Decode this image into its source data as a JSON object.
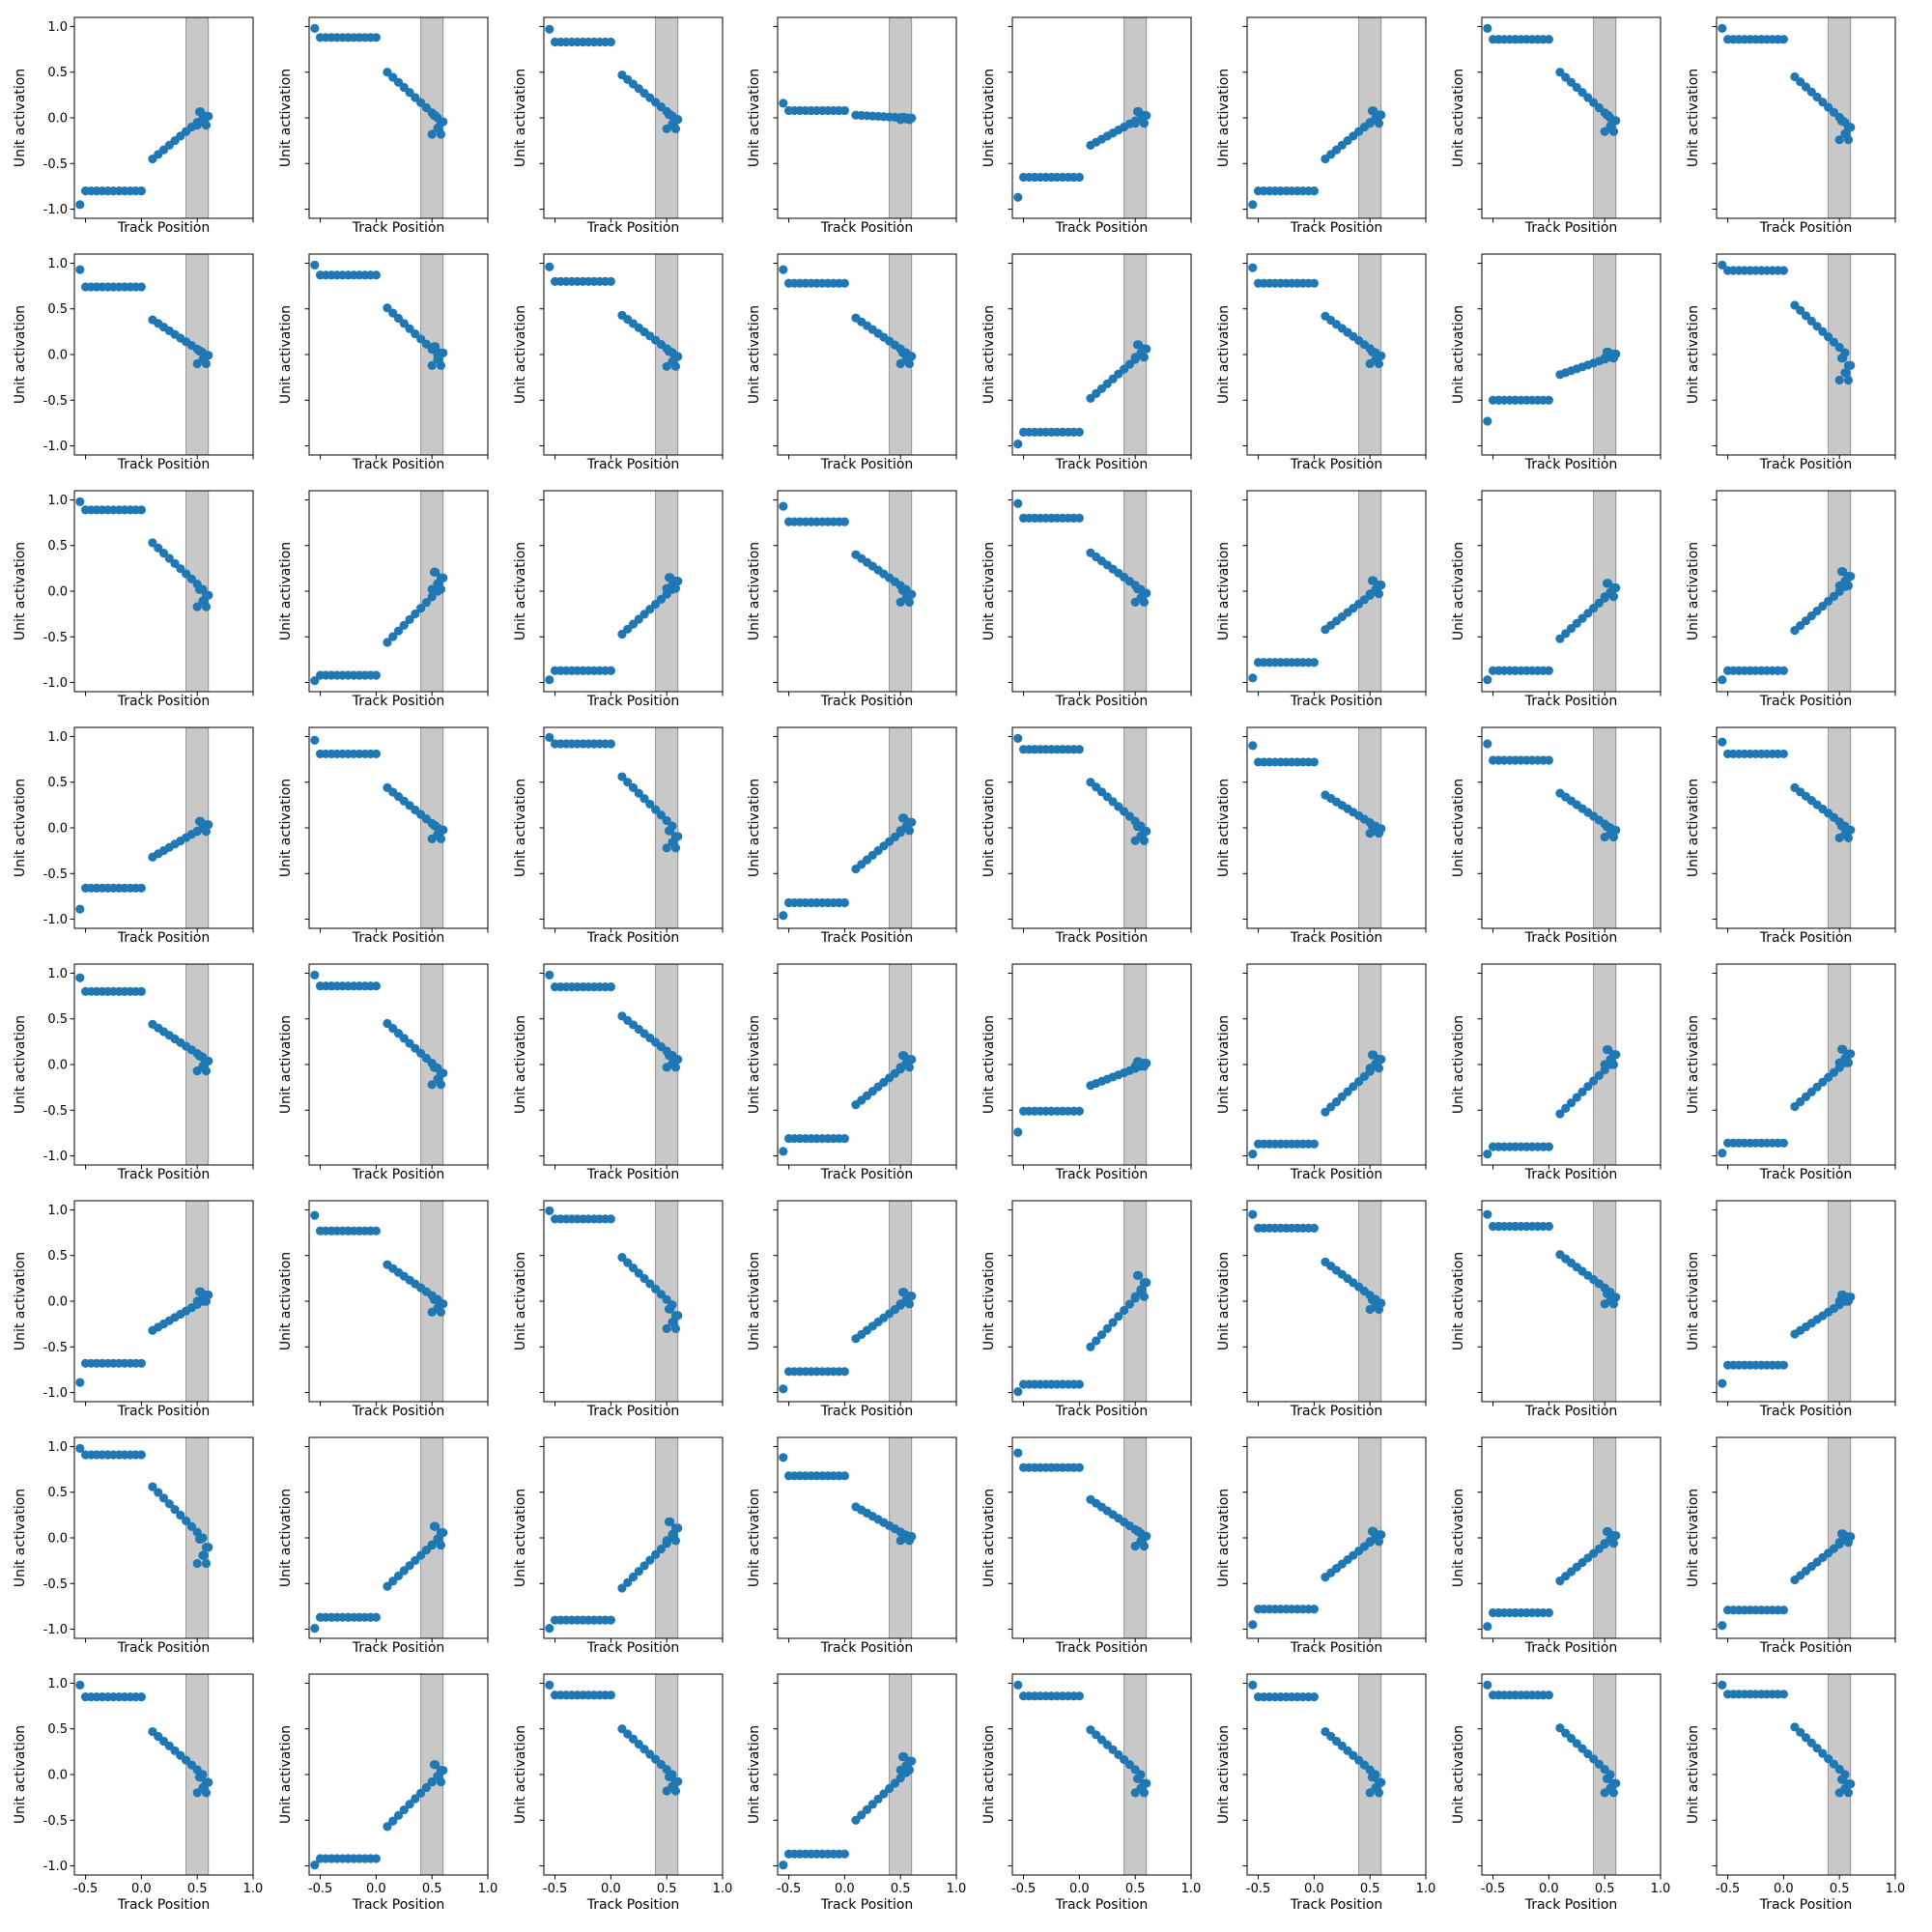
{
  "figure": {
    "point_color": "#1f77b4",
    "shade_color": "#c8c8c8",
    "shade_edge_color": "#808080"
  },
  "chart_data": {
    "type": "scatter",
    "grid_rows": 8,
    "grid_cols": 8,
    "xlabel": "Track Position",
    "ylabel": "Unit activation",
    "xlim": [
      -0.6,
      1.0
    ],
    "ylim": [
      -1.1,
      1.1
    ],
    "xticks": [
      -0.5,
      0.0,
      0.5,
      1.0
    ],
    "xtick_labels": [
      "-0.5",
      "0.0",
      "0.5",
      "1.0"
    ],
    "yticks": [
      -1.0,
      -0.5,
      0.0,
      0.5,
      1.0
    ],
    "ytick_labels": [
      "-1.0",
      "-0.5",
      "0.0",
      "0.5",
      "1.0"
    ],
    "grid": false,
    "shaded_region": [
      0.4,
      0.6
    ],
    "flat_x": [
      -0.5,
      -0.45,
      -0.4,
      -0.35,
      -0.3,
      -0.25,
      -0.2,
      -0.15,
      -0.1,
      -0.05,
      0.0
    ],
    "slope_x": [
      0.1,
      0.15,
      0.2,
      0.25,
      0.3,
      0.35,
      0.4,
      0.45,
      0.5,
      0.55
    ],
    "cluster_x": [
      0.5,
      0.53,
      0.56,
      0.58,
      0.6,
      0.55,
      0.52,
      0.58
    ],
    "panels": [
      {
        "first": [
          -0.55,
          -0.95
        ],
        "flat": -0.8,
        "slope_start": -0.45,
        "slope_end": 0.0,
        "cluster_lo": -0.08,
        "cluster_hi": 0.09
      },
      {
        "first": [
          -0.55,
          0.98
        ],
        "flat": 0.88,
        "slope_start": 0.5,
        "slope_end": 0.0,
        "cluster_lo": -0.18,
        "cluster_hi": 0.06
      },
      {
        "first": [
          -0.55,
          0.97
        ],
        "flat": 0.83,
        "slope_start": 0.47,
        "slope_end": 0.02,
        "cluster_lo": -0.12,
        "cluster_hi": 0.06
      },
      {
        "first": [
          -0.55,
          0.16
        ],
        "flat": 0.08,
        "slope_start": 0.03,
        "slope_end": 0.0,
        "cluster_lo": -0.02,
        "cluster_hi": 0.01
      },
      {
        "first": [
          -0.55,
          -0.87
        ],
        "flat": -0.65,
        "slope_start": -0.3,
        "slope_end": 0.0,
        "cluster_lo": -0.06,
        "cluster_hi": 0.09
      },
      {
        "first": [
          -0.55,
          -0.95
        ],
        "flat": -0.8,
        "slope_start": -0.45,
        "slope_end": 0.0,
        "cluster_lo": -0.06,
        "cluster_hi": 0.1
      },
      {
        "first": [
          -0.55,
          0.98
        ],
        "flat": 0.86,
        "slope_start": 0.5,
        "slope_end": 0.0,
        "cluster_lo": -0.15,
        "cluster_hi": 0.06
      },
      {
        "first": [
          -0.55,
          0.98
        ],
        "flat": 0.86,
        "slope_start": 0.45,
        "slope_end": -0.05,
        "cluster_lo": -0.24,
        "cluster_hi": 0.0
      },
      {
        "first": [
          -0.55,
          0.93
        ],
        "flat": 0.74,
        "slope_start": 0.38,
        "slope_end": 0.02,
        "cluster_lo": -0.1,
        "cluster_hi": 0.06
      },
      {
        "first": [
          -0.55,
          0.98
        ],
        "flat": 0.87,
        "slope_start": 0.51,
        "slope_end": 0.0,
        "cluster_lo": -0.12,
        "cluster_hi": 0.12
      },
      {
        "first": [
          -0.55,
          0.96
        ],
        "flat": 0.8,
        "slope_start": 0.43,
        "slope_end": 0.02,
        "cluster_lo": -0.13,
        "cluster_hi": 0.06
      },
      {
        "first": [
          -0.55,
          0.93
        ],
        "flat": 0.78,
        "slope_start": 0.4,
        "slope_end": 0.02,
        "cluster_lo": -0.1,
        "cluster_hi": 0.04
      },
      {
        "first": [
          -0.55,
          -0.98
        ],
        "flat": -0.85,
        "slope_start": -0.48,
        "slope_end": 0.0,
        "cluster_lo": -0.03,
        "cluster_hi": 0.13
      },
      {
        "first": [
          -0.55,
          0.95
        ],
        "flat": 0.78,
        "slope_start": 0.42,
        "slope_end": 0.02,
        "cluster_lo": -0.1,
        "cluster_hi": 0.05
      },
      {
        "first": [
          -0.55,
          -0.73
        ],
        "flat": -0.5,
        "slope_start": -0.22,
        "slope_end": -0.03,
        "cluster_lo": -0.04,
        "cluster_hi": 0.04
      },
      {
        "first": [
          -0.55,
          0.98
        ],
        "flat": 0.92,
        "slope_start": 0.54,
        "slope_end": 0.02,
        "cluster_lo": -0.28,
        "cluster_hi": 0.0
      },
      {
        "first": [
          -0.55,
          0.98
        ],
        "flat": 0.89,
        "slope_start": 0.53,
        "slope_end": 0.02,
        "cluster_lo": -0.17,
        "cluster_hi": 0.05
      },
      {
        "first": [
          -0.55,
          -0.98
        ],
        "flat": -0.92,
        "slope_start": -0.56,
        "slope_end": 0.0,
        "cluster_lo": 0.02,
        "cluster_hi": 0.24
      },
      {
        "first": [
          -0.55,
          -0.97
        ],
        "flat": -0.87,
        "slope_start": -0.47,
        "slope_end": 0.02,
        "cluster_lo": 0.03,
        "cluster_hi": 0.17
      },
      {
        "first": [
          -0.55,
          0.93
        ],
        "flat": 0.76,
        "slope_start": 0.4,
        "slope_end": 0.02,
        "cluster_lo": -0.12,
        "cluster_hi": 0.03
      },
      {
        "first": [
          -0.55,
          0.96
        ],
        "flat": 0.8,
        "slope_start": 0.42,
        "slope_end": 0.02,
        "cluster_lo": -0.12,
        "cluster_hi": 0.05
      },
      {
        "first": [
          -0.55,
          -0.95
        ],
        "flat": -0.78,
        "slope_start": -0.42,
        "slope_end": 0.0,
        "cluster_lo": -0.03,
        "cluster_hi": 0.14
      },
      {
        "first": [
          -0.55,
          -0.97
        ],
        "flat": -0.87,
        "slope_start": -0.52,
        "slope_end": -0.02,
        "cluster_lo": -0.06,
        "cluster_hi": 0.11
      },
      {
        "first": [
          -0.55,
          -0.97
        ],
        "flat": -0.87,
        "slope_start": -0.43,
        "slope_end": 0.05,
        "cluster_lo": 0.06,
        "cluster_hi": 0.24
      },
      {
        "first": [
          -0.55,
          -0.89
        ],
        "flat": -0.66,
        "slope_start": -0.32,
        "slope_end": 0.0,
        "cluster_lo": -0.04,
        "cluster_hi": 0.09
      },
      {
        "first": [
          -0.55,
          0.96
        ],
        "flat": 0.81,
        "slope_start": 0.44,
        "slope_end": 0.0,
        "cluster_lo": -0.12,
        "cluster_hi": 0.05
      },
      {
        "first": [
          -0.55,
          0.99
        ],
        "flat": 0.92,
        "slope_start": 0.56,
        "slope_end": 0.02,
        "cluster_lo": -0.22,
        "cluster_hi": 0.0
      },
      {
        "first": [
          -0.55,
          -0.96
        ],
        "flat": -0.82,
        "slope_start": -0.45,
        "slope_end": 0.0,
        "cluster_lo": -0.03,
        "cluster_hi": 0.13
      },
      {
        "first": [
          -0.55,
          0.98
        ],
        "flat": 0.86,
        "slope_start": 0.5,
        "slope_end": 0.02,
        "cluster_lo": -0.14,
        "cluster_hi": 0.04
      },
      {
        "first": [
          -0.55,
          0.9
        ],
        "flat": 0.72,
        "slope_start": 0.36,
        "slope_end": 0.02,
        "cluster_lo": -0.06,
        "cluster_hi": 0.03
      },
      {
        "first": [
          -0.55,
          0.92
        ],
        "flat": 0.74,
        "slope_start": 0.38,
        "slope_end": 0.0,
        "cluster_lo": -0.1,
        "cluster_hi": 0.03
      },
      {
        "first": [
          -0.55,
          0.94
        ],
        "flat": 0.81,
        "slope_start": 0.44,
        "slope_end": 0.02,
        "cluster_lo": -0.11,
        "cluster_hi": 0.04
      },
      {
        "first": [
          -0.55,
          0.95
        ],
        "flat": 0.8,
        "slope_start": 0.44,
        "slope_end": 0.08,
        "cluster_lo": -0.07,
        "cluster_hi": 0.12
      },
      {
        "first": [
          -0.55,
          0.98
        ],
        "flat": 0.86,
        "slope_start": 0.45,
        "slope_end": -0.04,
        "cluster_lo": -0.22,
        "cluster_hi": 0.0
      },
      {
        "first": [
          -0.55,
          0.98
        ],
        "flat": 0.85,
        "slope_start": 0.53,
        "slope_end": 0.1,
        "cluster_lo": -0.03,
        "cluster_hi": 0.12
      },
      {
        "first": [
          -0.55,
          -0.95
        ],
        "flat": -0.81,
        "slope_start": -0.44,
        "slope_end": 0.0,
        "cluster_lo": -0.03,
        "cluster_hi": 0.12
      },
      {
        "first": [
          -0.55,
          -0.74
        ],
        "flat": -0.51,
        "slope_start": -0.23,
        "slope_end": -0.02,
        "cluster_lo": -0.02,
        "cluster_hi": 0.04
      },
      {
        "first": [
          -0.55,
          -0.98
        ],
        "flat": -0.87,
        "slope_start": -0.52,
        "slope_end": -0.02,
        "cluster_lo": -0.04,
        "cluster_hi": 0.13
      },
      {
        "first": [
          -0.55,
          -0.98
        ],
        "flat": -0.9,
        "slope_start": -0.54,
        "slope_end": 0.0,
        "cluster_lo": 0.0,
        "cluster_hi": 0.19
      },
      {
        "first": [
          -0.55,
          -0.97
        ],
        "flat": -0.86,
        "slope_start": -0.46,
        "slope_end": 0.02,
        "cluster_lo": 0.02,
        "cluster_hi": 0.19
      },
      {
        "first": [
          -0.55,
          -0.89
        ],
        "flat": -0.68,
        "slope_start": -0.32,
        "slope_end": 0.0,
        "cluster_lo": 0.0,
        "cluster_hi": 0.12
      },
      {
        "first": [
          -0.55,
          0.94
        ],
        "flat": 0.77,
        "slope_start": 0.4,
        "slope_end": 0.02,
        "cluster_lo": -0.12,
        "cluster_hi": 0.04
      },
      {
        "first": [
          -0.55,
          0.99
        ],
        "flat": 0.9,
        "slope_start": 0.48,
        "slope_end": -0.04,
        "cluster_lo": -0.3,
        "cluster_hi": -0.05
      },
      {
        "first": [
          -0.55,
          -0.96
        ],
        "flat": -0.77,
        "slope_start": -0.41,
        "slope_end": 0.0,
        "cluster_lo": -0.03,
        "cluster_hi": 0.12
      },
      {
        "first": [
          -0.55,
          -0.99
        ],
        "flat": -0.91,
        "slope_start": -0.5,
        "slope_end": 0.1,
        "cluster_lo": 0.05,
        "cluster_hi": 0.32
      },
      {
        "first": [
          -0.55,
          0.95
        ],
        "flat": 0.8,
        "slope_start": 0.43,
        "slope_end": 0.02,
        "cluster_lo": -0.09,
        "cluster_hi": 0.03
      },
      {
        "first": [
          -0.55,
          0.95
        ],
        "flat": 0.82,
        "slope_start": 0.51,
        "slope_end": 0.1,
        "cluster_lo": -0.03,
        "cluster_hi": 0.1
      },
      {
        "first": [
          -0.55,
          -0.9
        ],
        "flat": -0.7,
        "slope_start": -0.36,
        "slope_end": 0.0,
        "cluster_lo": 0.0,
        "cluster_hi": 0.08
      },
      {
        "first": [
          -0.55,
          0.98
        ],
        "flat": 0.91,
        "slope_start": 0.56,
        "slope_end": 0.0,
        "cluster_lo": -0.28,
        "cluster_hi": 0.03
      },
      {
        "first": [
          -0.55,
          -0.99
        ],
        "flat": -0.87,
        "slope_start": -0.53,
        "slope_end": -0.02,
        "cluster_lo": -0.08,
        "cluster_hi": 0.16
      },
      {
        "first": [
          -0.55,
          -0.99
        ],
        "flat": -0.9,
        "slope_start": -0.55,
        "slope_end": 0.0,
        "cluster_lo": -0.03,
        "cluster_hi": 0.21
      },
      {
        "first": [
          -0.55,
          0.88
        ],
        "flat": 0.68,
        "slope_start": 0.34,
        "slope_end": 0.03,
        "cluster_lo": -0.03,
        "cluster_hi": 0.05
      },
      {
        "first": [
          -0.55,
          0.93
        ],
        "flat": 0.77,
        "slope_start": 0.42,
        "slope_end": 0.05,
        "cluster_lo": -0.09,
        "cluster_hi": 0.1
      },
      {
        "first": [
          -0.55,
          -0.95
        ],
        "flat": -0.78,
        "slope_start": -0.43,
        "slope_end": 0.0,
        "cluster_lo": -0.04,
        "cluster_hi": 0.09
      },
      {
        "first": [
          -0.55,
          -0.97
        ],
        "flat": -0.82,
        "slope_start": -0.47,
        "slope_end": -0.02,
        "cluster_lo": -0.06,
        "cluster_hi": 0.09
      },
      {
        "first": [
          -0.55,
          -0.96
        ],
        "flat": -0.79,
        "slope_start": -0.46,
        "slope_end": -0.02,
        "cluster_lo": -0.05,
        "cluster_hi": 0.06
      },
      {
        "first": [
          -0.55,
          0.98
        ],
        "flat": 0.85,
        "slope_start": 0.47,
        "slope_end": 0.0,
        "cluster_lo": -0.2,
        "cluster_hi": 0.0
      },
      {
        "first": [
          -0.55,
          -0.99
        ],
        "flat": -0.92,
        "slope_start": -0.57,
        "slope_end": -0.02,
        "cluster_lo": -0.08,
        "cluster_hi": 0.14
      },
      {
        "first": [
          -0.55,
          0.98
        ],
        "flat": 0.87,
        "slope_start": 0.5,
        "slope_end": 0.0,
        "cluster_lo": -0.18,
        "cluster_hi": 0.0
      },
      {
        "first": [
          -0.55,
          -0.99
        ],
        "flat": -0.87,
        "slope_start": -0.5,
        "slope_end": 0.02,
        "cluster_lo": 0.05,
        "cluster_hi": 0.22
      },
      {
        "first": [
          -0.55,
          0.98
        ],
        "flat": 0.86,
        "slope_start": 0.49,
        "slope_end": 0.0,
        "cluster_lo": -0.2,
        "cluster_hi": -0.02
      },
      {
        "first": [
          -0.55,
          0.98
        ],
        "flat": 0.85,
        "slope_start": 0.47,
        "slope_end": 0.0,
        "cluster_lo": -0.2,
        "cluster_hi": 0.0
      },
      {
        "first": [
          -0.55,
          0.98
        ],
        "flat": 0.87,
        "slope_start": 0.51,
        "slope_end": 0.0,
        "cluster_lo": -0.2,
        "cluster_hi": -0.02
      },
      {
        "first": [
          -0.55,
          0.98
        ],
        "flat": 0.88,
        "slope_start": 0.52,
        "slope_end": 0.0,
        "cluster_lo": -0.2,
        "cluster_hi": -0.03
      }
    ]
  }
}
